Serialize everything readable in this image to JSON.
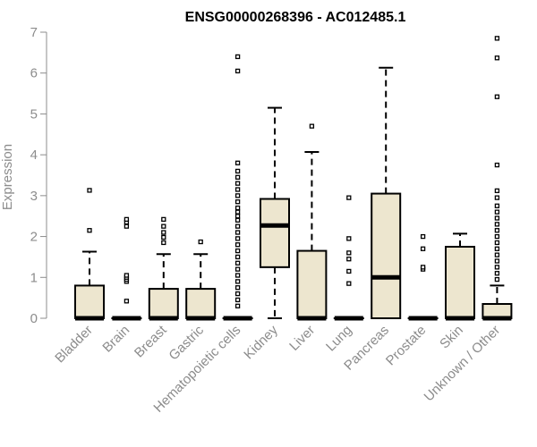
{
  "chart_data": {
    "type": "boxplot",
    "title": "ENSG00000268396 - AC012485.1",
    "ylabel": "Expression",
    "xlabel": "",
    "ylim": [
      0,
      7
    ],
    "yticks": [
      "0",
      "1",
      "2",
      "3",
      "4",
      "5",
      "6",
      "7"
    ],
    "box_fill": "#ede6cf",
    "categories": [
      "Bladder",
      "Brain",
      "Breast",
      "Gastric",
      "Hematopoietic cells",
      "Kidney",
      "Liver",
      "Lung",
      "Pancreas",
      "Prostate",
      "Skin",
      "Unknown / Other"
    ],
    "boxes": [
      {
        "q1": 0,
        "median": 0,
        "q3": 0.8,
        "whisker_low": 0,
        "whisker_high": 1.63,
        "outliers": [
          2.15,
          3.13
        ]
      },
      {
        "q1": 0,
        "median": 0,
        "q3": 0,
        "whisker_low": 0,
        "whisker_high": 0,
        "outliers": [
          0.42,
          0.9,
          0.95,
          1.0,
          1.05,
          2.25,
          2.35,
          2.42
        ]
      },
      {
        "q1": 0,
        "median": 0,
        "q3": 0.72,
        "whisker_low": 0,
        "whisker_high": 1.57,
        "outliers": [
          1.85,
          1.98,
          2.1,
          2.25,
          2.42
        ]
      },
      {
        "q1": 0,
        "median": 0,
        "q3": 0.72,
        "whisker_low": 0,
        "whisker_high": 1.57,
        "outliers": [
          1.87
        ]
      },
      {
        "q1": 0,
        "median": 0,
        "q3": 0,
        "whisker_low": 0,
        "whisker_high": 0,
        "outliers": [
          0.3,
          0.45,
          0.6,
          0.75,
          0.9,
          1.05,
          1.2,
          1.35,
          1.5,
          1.65,
          1.8,
          1.95,
          2.1,
          2.25,
          2.4,
          2.5,
          2.6,
          2.7,
          2.85,
          3.0,
          3.15,
          3.3,
          3.45,
          3.6,
          3.8,
          6.05,
          6.4
        ]
      },
      {
        "q1": 1.25,
        "median": 2.27,
        "q3": 2.92,
        "whisker_low": 0,
        "whisker_high": 5.15,
        "outliers": []
      },
      {
        "q1": 0,
        "median": 0,
        "q3": 1.65,
        "whisker_low": 0,
        "whisker_high": 4.07,
        "outliers": [
          4.7
        ]
      },
      {
        "q1": 0,
        "median": 0,
        "q3": 0,
        "whisker_low": 0,
        "whisker_high": 0,
        "outliers": [
          0.85,
          1.15,
          1.45,
          1.6,
          1.95,
          2.95
        ]
      },
      {
        "q1": 0,
        "median": 1.0,
        "q3": 3.05,
        "whisker_low": 0,
        "whisker_high": 6.13,
        "outliers": []
      },
      {
        "q1": 0,
        "median": 0,
        "q3": 0,
        "whisker_low": 0,
        "whisker_high": 0,
        "outliers": [
          1.2,
          1.25,
          1.7,
          2.0
        ]
      },
      {
        "q1": 0,
        "median": 0,
        "q3": 1.75,
        "whisker_low": 0,
        "whisker_high": 2.07,
        "outliers": []
      },
      {
        "q1": 0,
        "median": 0,
        "q3": 0.35,
        "whisker_low": 0,
        "whisker_high": 0.8,
        "outliers": [
          0.95,
          1.1,
          1.25,
          1.4,
          1.55,
          1.7,
          1.85,
          2.0,
          2.15,
          2.3,
          2.45,
          2.6,
          2.75,
          2.95,
          3.12,
          3.75,
          5.42,
          6.37,
          6.85
        ]
      }
    ]
  }
}
